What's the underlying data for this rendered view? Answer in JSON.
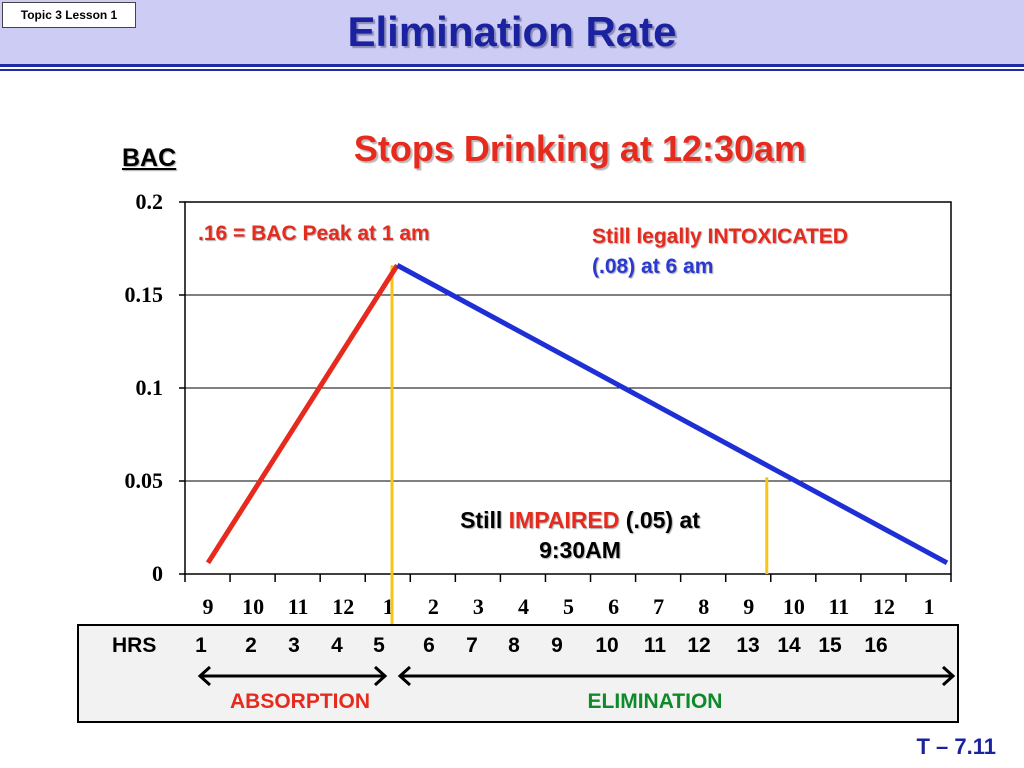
{
  "header": {
    "lesson_tag": "Topic 3 Lesson 1",
    "title": "Elimination Rate"
  },
  "chart_data": {
    "type": "line",
    "title": "Stops Drinking at 12:30am",
    "ylabel": "BAC",
    "xlabel": "",
    "ylim": [
      0,
      0.2
    ],
    "yticks": [
      0,
      0.05,
      0.1,
      0.15,
      0.2
    ],
    "categories": [
      "9",
      "10",
      "11",
      "12",
      "1",
      "2",
      "3",
      "4",
      "5",
      "6",
      "7",
      "8",
      "9",
      "10",
      "11",
      "12",
      "1"
    ],
    "series": [
      {
        "color": "#e62a1e",
        "x": [
          0,
          4.2
        ],
        "y": [
          0.006,
          0.166
        ]
      },
      {
        "color": "#1f2fd6",
        "x": [
          4.2,
          16.4
        ],
        "y": [
          0.166,
          0.006
        ]
      }
    ],
    "markers": [
      {
        "x": 4.2,
        "y": 0.166,
        "color": "#f5c518"
      },
      {
        "x": 12.4,
        "y": 0.052,
        "color": "#f5c518"
      }
    ],
    "grid": true
  },
  "annotations": {
    "peak": ".16 = BAC Peak at 1 am",
    "legal_1": "Still legally INTOXICATED",
    "legal_2": "(.08) at 6 am",
    "impaired_pre": "Still ",
    "impaired_word": "IMPAIRED",
    "impaired_post": " (.05) at",
    "impaired_line2": "9:30AM"
  },
  "hours_table": {
    "label": "HRS",
    "hours": [
      "1",
      "2",
      "3",
      "4",
      "5",
      "6",
      "7",
      "8",
      "9",
      "10",
      "11",
      "12",
      "13",
      "14",
      "15",
      "16"
    ],
    "absorption": "ABSORPTION",
    "elimination": "ELIMINATION"
  },
  "slide_number": "T – 7.11",
  "colors": {
    "accent_blue": "#1a22a0",
    "red": "#e62a1e",
    "green": "#0f8a2a",
    "yellow": "#f5c518"
  }
}
